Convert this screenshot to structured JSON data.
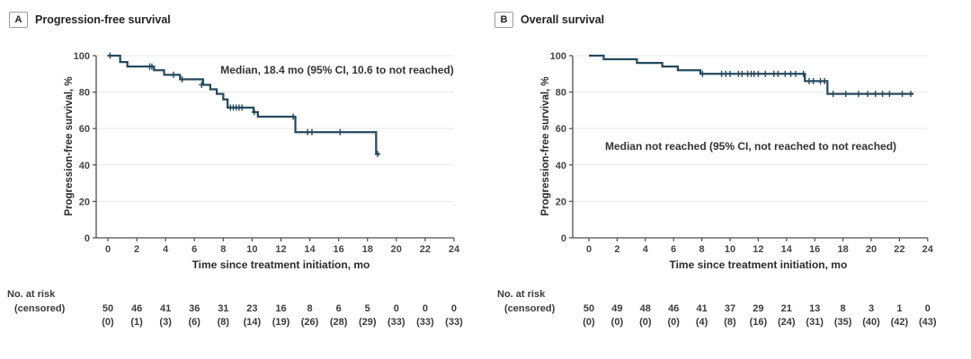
{
  "figure": {
    "background": "#ffffff"
  },
  "chart_data": [
    {
      "type": "line",
      "subtype": "kaplan-meier-step",
      "panel_letter": "A",
      "title": "Progression-free survival",
      "ylabel": "Progression-free survival, %",
      "xlabel": "Time since treatment initiation, mo",
      "annotation": "Median, 18.4 mo (95% CI, 10.6 to not reached)",
      "x_ticks": [
        0,
        2,
        4,
        6,
        8,
        10,
        12,
        14,
        16,
        18,
        20,
        22,
        24
      ],
      "y_ticks": [
        0,
        20,
        40,
        60,
        80,
        100
      ],
      "xlim": [
        0,
        24
      ],
      "ylim": [
        0,
        100
      ],
      "grid": true,
      "line_color": "#26495c",
      "steps": [
        [
          0,
          100
        ],
        [
          0.85,
          96.5
        ],
        [
          1.35,
          94
        ],
        [
          3.2,
          92
        ],
        [
          3.9,
          89.5
        ],
        [
          5.0,
          87
        ],
        [
          6.6,
          84
        ],
        [
          7.1,
          81.5
        ],
        [
          7.55,
          79
        ],
        [
          8.0,
          76
        ],
        [
          8.3,
          71.5
        ],
        [
          10.1,
          69
        ],
        [
          10.4,
          66.5
        ],
        [
          13.0,
          58
        ],
        [
          18.6,
          46
        ]
      ],
      "end_month": 18.85,
      "censors": [
        [
          0.15,
          100
        ],
        [
          2.9,
          94
        ],
        [
          3.05,
          94
        ],
        [
          4.55,
          89.5
        ],
        [
          5.15,
          87
        ],
        [
          6.5,
          84
        ],
        [
          8.5,
          71.5
        ],
        [
          8.7,
          71.5
        ],
        [
          8.9,
          71.5
        ],
        [
          9.1,
          71.5
        ],
        [
          9.3,
          71.5
        ],
        [
          10.15,
          69
        ],
        [
          12.85,
          66.5
        ],
        [
          13.85,
          58
        ],
        [
          14.15,
          58
        ],
        [
          16.1,
          58
        ],
        [
          18.7,
          46
        ]
      ],
      "at_risk": {
        "row1_label": "No. at risk",
        "row2_label": "(censored)",
        "risk": [
          50,
          46,
          41,
          36,
          31,
          23,
          16,
          8,
          6,
          5,
          0,
          0,
          0
        ],
        "censored": [
          "(0)",
          "(1)",
          "(3)",
          "(6)",
          "(8)",
          "(14)",
          "(19)",
          "(26)",
          "(28)",
          "(29)",
          "(33)",
          "(33)",
          "(33)"
        ]
      }
    },
    {
      "type": "line",
      "subtype": "kaplan-meier-step",
      "panel_letter": "B",
      "title": "Overall survival",
      "ylabel": "Progression-free survival, %",
      "xlabel": "Time since treatment initiation, mo",
      "annotation": "Median not reached (95% CI, not reached to not reached)",
      "x_ticks": [
        0,
        2,
        4,
        6,
        8,
        10,
        12,
        14,
        16,
        18,
        20,
        22,
        24
      ],
      "y_ticks": [
        0,
        20,
        40,
        60,
        80,
        100
      ],
      "xlim": [
        0,
        24
      ],
      "ylim": [
        0,
        100
      ],
      "grid": true,
      "line_color": "#26495c",
      "steps": [
        [
          0,
          100
        ],
        [
          1.05,
          98
        ],
        [
          3.4,
          96
        ],
        [
          5.2,
          94
        ],
        [
          6.3,
          92
        ],
        [
          7.9,
          90
        ],
        [
          15.3,
          86
        ],
        [
          16.9,
          79
        ]
      ],
      "end_month": 23.0,
      "censors": [
        [
          8.05,
          90
        ],
        [
          9.4,
          90
        ],
        [
          9.7,
          90
        ],
        [
          10.0,
          90
        ],
        [
          10.6,
          90
        ],
        [
          10.85,
          90
        ],
        [
          11.25,
          90
        ],
        [
          11.5,
          90
        ],
        [
          11.7,
          90
        ],
        [
          12.0,
          90
        ],
        [
          12.5,
          90
        ],
        [
          13.1,
          90
        ],
        [
          13.4,
          90
        ],
        [
          13.9,
          90
        ],
        [
          14.3,
          90
        ],
        [
          14.65,
          90
        ],
        [
          15.2,
          90
        ],
        [
          15.6,
          86
        ],
        [
          15.9,
          86
        ],
        [
          16.4,
          86
        ],
        [
          16.7,
          86
        ],
        [
          17.3,
          79
        ],
        [
          18.2,
          79
        ],
        [
          19.1,
          79
        ],
        [
          19.75,
          79
        ],
        [
          20.3,
          79
        ],
        [
          20.8,
          79
        ],
        [
          21.3,
          79
        ],
        [
          22.2,
          79
        ],
        [
          22.8,
          79
        ]
      ],
      "at_risk": {
        "row1_label": "No. at risk",
        "row2_label": "(censored)",
        "risk": [
          50,
          49,
          48,
          46,
          41,
          37,
          29,
          21,
          13,
          8,
          3,
          1,
          0
        ],
        "censored": [
          "(0)",
          "(0)",
          "(0)",
          "(0)",
          "(4)",
          "(8)",
          "(16)",
          "(24)",
          "(31)",
          "(35)",
          "(40)",
          "(42)",
          "(43)"
        ]
      }
    }
  ]
}
